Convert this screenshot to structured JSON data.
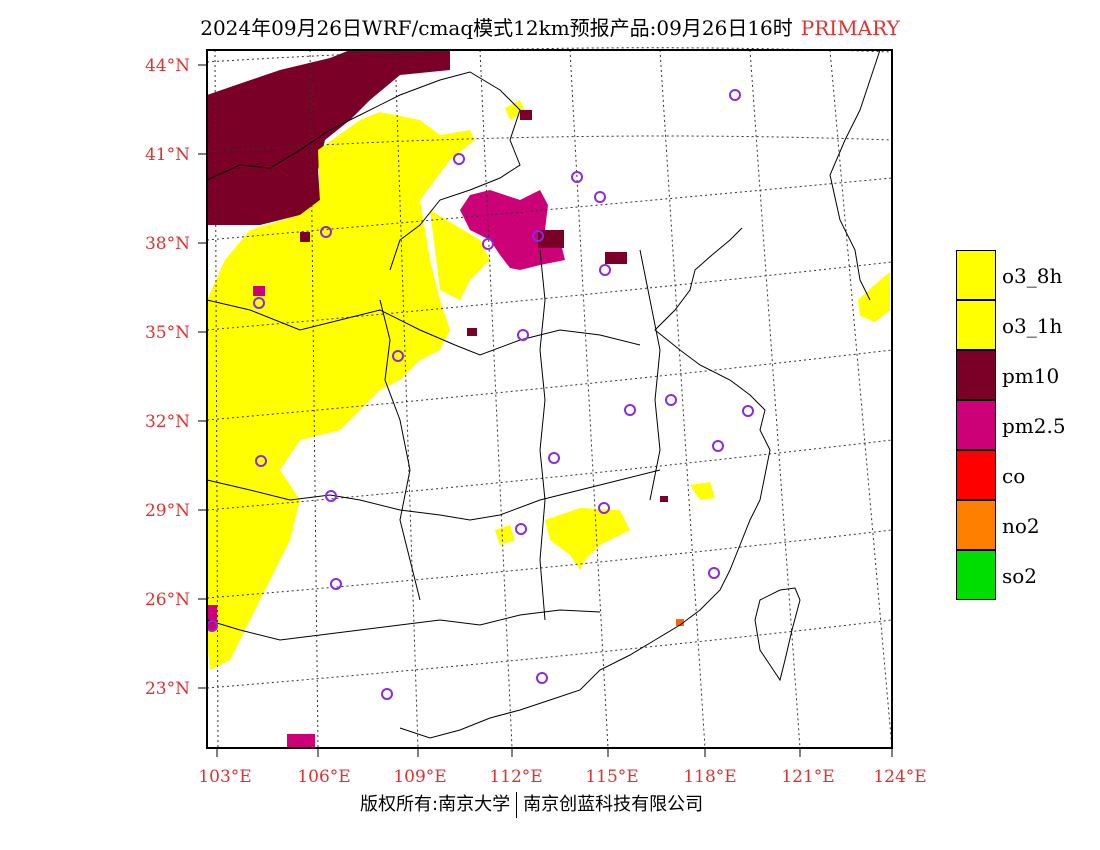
{
  "title": {
    "main": "2024年09月26日WRF/cmaq模式12km预报产品:09月26日16时",
    "tag": "PRIMARY"
  },
  "axes": {
    "lat_labels": [
      "44°N",
      "41°N",
      "38°N",
      "35°N",
      "32°N",
      "29°N",
      "26°N",
      "23°N"
    ],
    "lon_labels": [
      "103°E",
      "106°E",
      "109°E",
      "112°E",
      "115°E",
      "118°E",
      "121°E",
      "124°E"
    ]
  },
  "legend": [
    {
      "label": "o3_8h",
      "color": "#ffff00"
    },
    {
      "label": "o3_1h",
      "color": "#ffff00"
    },
    {
      "label": "pm10",
      "color": "#7a0028"
    },
    {
      "label": "pm2.5",
      "color": "#cc0077"
    },
    {
      "label": "co",
      "color": "#ff0000"
    },
    {
      "label": "no2",
      "color": "#ff7f00"
    },
    {
      "label": "so2",
      "color": "#00dd00"
    }
  ],
  "footer": {
    "left": "版权所有:南京大学",
    "right": "南京创蓝科技有限公司"
  },
  "colors": {
    "axis_label": "#e03030",
    "station_marker": "#8a2be2"
  }
}
